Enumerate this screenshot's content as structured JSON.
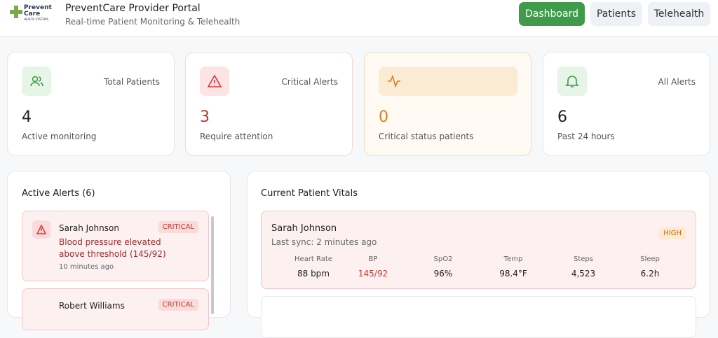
{
  "header": {
    "logo": {
      "line1": "Prevent",
      "line2": "Care",
      "line3": "HEALTH SYSTEMS"
    },
    "title": "PreventCare Provider Portal",
    "subtitle": "Real-time Patient Monitoring & Telehealth",
    "nav": [
      "Dashboard",
      "Patients",
      "Telehealth"
    ]
  },
  "stats": [
    {
      "label": "Total Patients",
      "value": "4",
      "note": "Active monitoring"
    },
    {
      "label": "Critical Alerts",
      "value": "3",
      "note": "Require attention"
    },
    {
      "label": "",
      "value": "0",
      "note": "Critical status patients"
    },
    {
      "label": "All Alerts",
      "value": "6",
      "note": "Past 24 hours"
    }
  ],
  "alerts": {
    "title": "Active Alerts (6)",
    "items": [
      {
        "name": "Sarah Johnson",
        "level": "CRITICAL",
        "message": "Blood pressure elevated above threshold (145/92)",
        "time": "10 minutes ago"
      },
      {
        "name": "Robert Williams",
        "level": "CRITICAL"
      }
    ]
  },
  "vitals": {
    "title": "Current Patient Vitals",
    "patients": [
      {
        "name": "Sarah Johnson",
        "sync": "Last sync: 2 minutes ago",
        "level": "HIGH",
        "metrics": [
          {
            "label": "Heart Rate",
            "value": "88 bpm"
          },
          {
            "label": "BP",
            "value": "145/92"
          },
          {
            "label": "SpO2",
            "value": "96%"
          },
          {
            "label": "Temp",
            "value": "98.4°F"
          },
          {
            "label": "Steps",
            "value": "4,523"
          },
          {
            "label": "Sleep",
            "value": "6.2h"
          }
        ]
      }
    ]
  }
}
